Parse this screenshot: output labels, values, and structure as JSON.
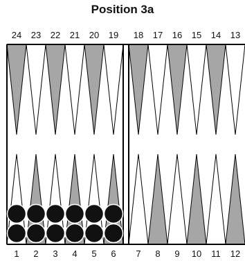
{
  "title": "Position 3a",
  "colors": {
    "dark_point": "#a6a6a6",
    "light_point": "#ffffff",
    "outline": "#000000",
    "checker": "#111111"
  },
  "points": {
    "top_left_labels": [
      "24",
      "23",
      "22",
      "21",
      "20",
      "19"
    ],
    "top_right_labels": [
      "18",
      "17",
      "16",
      "15",
      "14",
      "13"
    ],
    "bottom_left_labels": [
      "1",
      "2",
      "3",
      "4",
      "5",
      "6"
    ],
    "bottom_right_labels": [
      "7",
      "8",
      "9",
      "10",
      "11",
      "12"
    ]
  },
  "checkers": [
    {
      "point": 1,
      "count": 2,
      "color": "black"
    },
    {
      "point": 2,
      "count": 2,
      "color": "black"
    },
    {
      "point": 3,
      "count": 2,
      "color": "black"
    },
    {
      "point": 4,
      "count": 2,
      "color": "black"
    },
    {
      "point": 5,
      "count": 2,
      "color": "black"
    },
    {
      "point": 6,
      "count": 2,
      "color": "black"
    }
  ]
}
